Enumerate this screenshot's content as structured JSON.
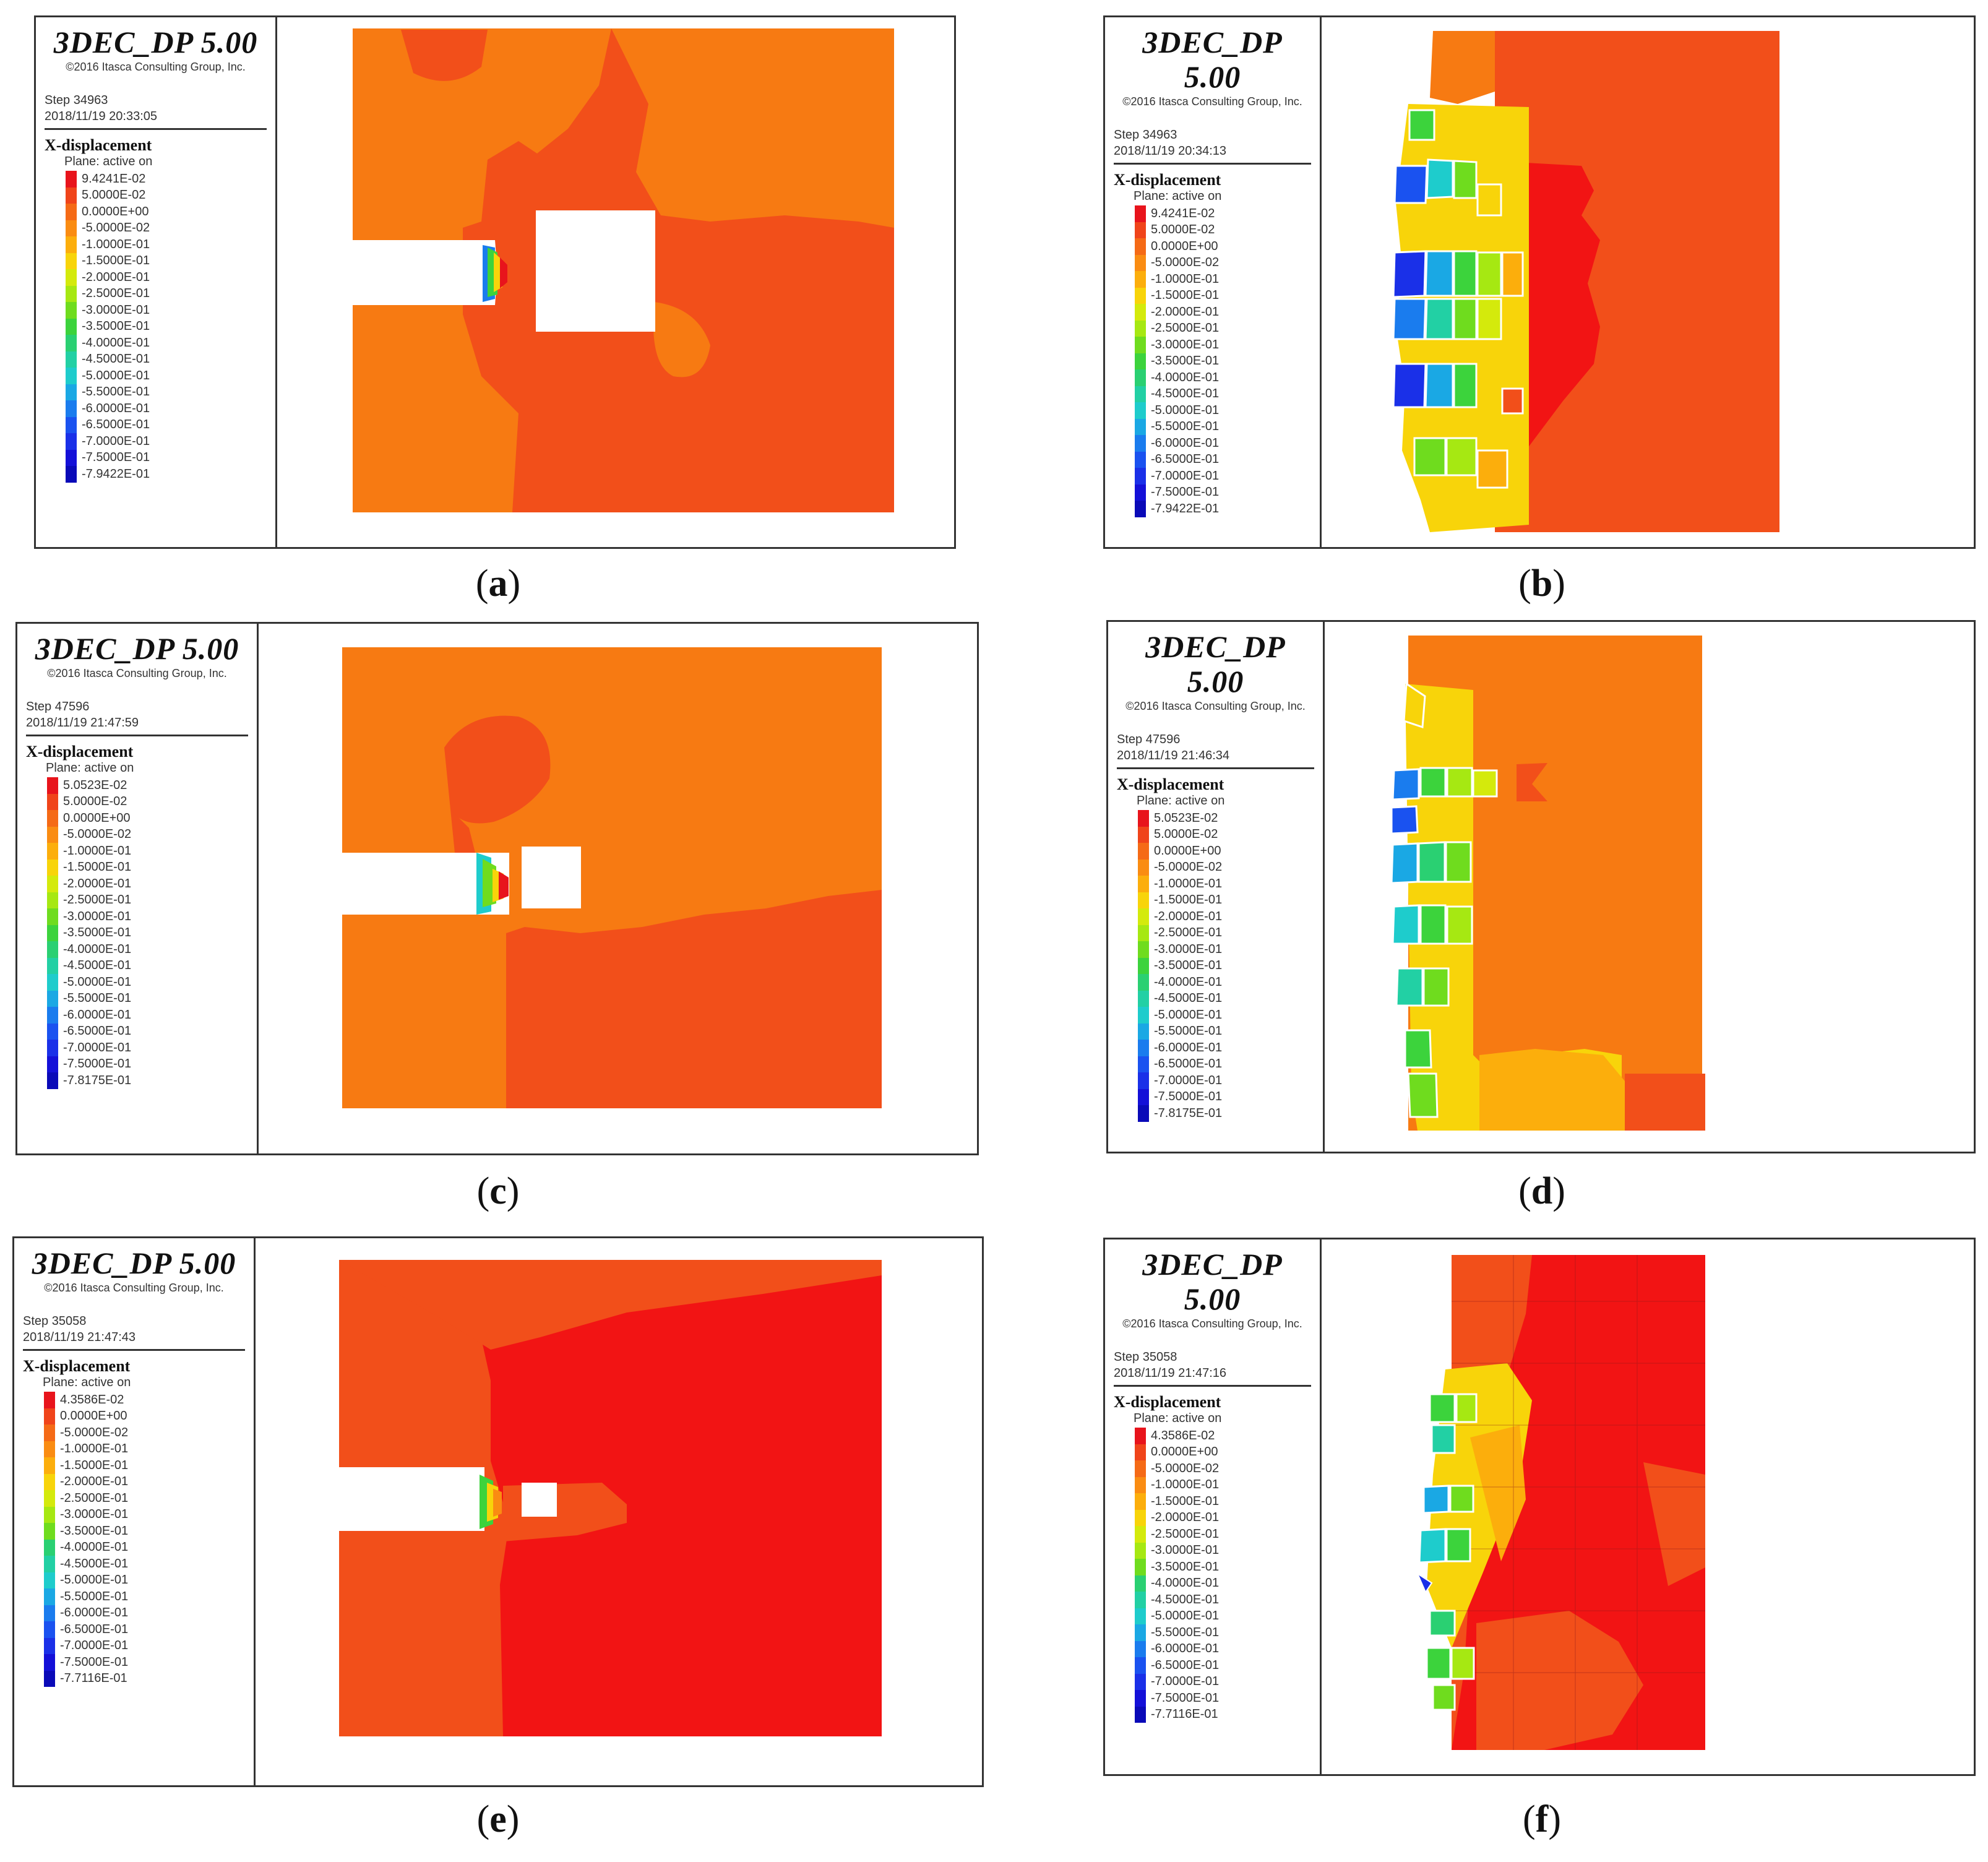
{
  "panels": [
    {
      "caption": "a",
      "app_title": "3DEC_DP 5.00",
      "copyright": "©2016 Itasca Consulting Group, Inc.",
      "step": "Step 34963",
      "timestamp": "2018/11/19 20:33:05",
      "quantity": "X-displacement",
      "plane": "Plane: active on",
      "scale": [
        "9.4241E-02",
        "5.0000E-02",
        "0.0000E+00",
        "-5.0000E-02",
        "-1.0000E-01",
        "-1.5000E-01",
        "-2.0000E-01",
        "-2.5000E-01",
        "-3.0000E-01",
        "-3.5000E-01",
        "-4.0000E-01",
        "-4.5000E-01",
        "-5.0000E-01",
        "-5.5000E-01",
        "-6.0000E-01",
        "-6.5000E-01",
        "-7.0000E-01",
        "-7.5000E-01",
        "-7.9422E-01"
      ]
    },
    {
      "caption": "b",
      "app_title": "3DEC_DP 5.00",
      "copyright": "©2016 Itasca Consulting Group, Inc.",
      "step": "Step 34963",
      "timestamp": "2018/11/19 20:34:13",
      "quantity": "X-displacement",
      "plane": "Plane: active on",
      "scale": [
        "9.4241E-02",
        "5.0000E-02",
        "0.0000E+00",
        "-5.0000E-02",
        "-1.0000E-01",
        "-1.5000E-01",
        "-2.0000E-01",
        "-2.5000E-01",
        "-3.0000E-01",
        "-3.5000E-01",
        "-4.0000E-01",
        "-4.5000E-01",
        "-5.0000E-01",
        "-5.5000E-01",
        "-6.0000E-01",
        "-6.5000E-01",
        "-7.0000E-01",
        "-7.5000E-01",
        "-7.9422E-01"
      ]
    },
    {
      "caption": "c",
      "app_title": "3DEC_DP 5.00",
      "copyright": "©2016 Itasca Consulting Group, Inc.",
      "step": "Step 47596",
      "timestamp": "2018/11/19 21:47:59",
      "quantity": "X-displacement",
      "plane": "Plane: active on",
      "scale": [
        "5.0523E-02",
        "5.0000E-02",
        "0.0000E+00",
        "-5.0000E-02",
        "-1.0000E-01",
        "-1.5000E-01",
        "-2.0000E-01",
        "-2.5000E-01",
        "-3.0000E-01",
        "-3.5000E-01",
        "-4.0000E-01",
        "-4.5000E-01",
        "-5.0000E-01",
        "-5.5000E-01",
        "-6.0000E-01",
        "-6.5000E-01",
        "-7.0000E-01",
        "-7.5000E-01",
        "-7.8175E-01"
      ]
    },
    {
      "caption": "d",
      "app_title": "3DEC_DP 5.00",
      "copyright": "©2016 Itasca Consulting Group, Inc.",
      "step": "Step 47596",
      "timestamp": "2018/11/19 21:46:34",
      "quantity": "X-displacement",
      "plane": "Plane: active on",
      "scale": [
        "5.0523E-02",
        "5.0000E-02",
        "0.0000E+00",
        "-5.0000E-02",
        "-1.0000E-01",
        "-1.5000E-01",
        "-2.0000E-01",
        "-2.5000E-01",
        "-3.0000E-01",
        "-3.5000E-01",
        "-4.0000E-01",
        "-4.5000E-01",
        "-5.0000E-01",
        "-5.5000E-01",
        "-6.0000E-01",
        "-6.5000E-01",
        "-7.0000E-01",
        "-7.5000E-01",
        "-7.8175E-01"
      ]
    },
    {
      "caption": "e",
      "app_title": "3DEC_DP 5.00",
      "copyright": "©2016 Itasca Consulting Group, Inc.",
      "step": "Step 35058",
      "timestamp": "2018/11/19 21:47:43",
      "quantity": "X-displacement",
      "plane": "Plane: active on",
      "scale": [
        "4.3586E-02",
        "0.0000E+00",
        "-5.0000E-02",
        "-1.0000E-01",
        "-1.5000E-01",
        "-2.0000E-01",
        "-2.5000E-01",
        "-3.0000E-01",
        "-3.5000E-01",
        "-4.0000E-01",
        "-4.5000E-01",
        "-5.0000E-01",
        "-5.5000E-01",
        "-6.0000E-01",
        "-6.5000E-01",
        "-7.0000E-01",
        "-7.5000E-01",
        "-7.7116E-01"
      ]
    },
    {
      "caption": "f",
      "app_title": "3DEC_DP 5.00",
      "copyright": "©2016 Itasca Consulting Group, Inc.",
      "step": "Step 35058",
      "timestamp": "2018/11/19 21:47:16",
      "quantity": "X-displacement",
      "plane": "Plane: active on",
      "scale": [
        "4.3586E-02",
        "0.0000E+00",
        "-5.0000E-02",
        "-1.0000E-01",
        "-1.5000E-01",
        "-2.0000E-01",
        "-2.5000E-01",
        "-3.0000E-01",
        "-3.5000E-01",
        "-4.0000E-01",
        "-4.5000E-01",
        "-5.0000E-01",
        "-5.5000E-01",
        "-6.0000E-01",
        "-6.5000E-01",
        "-7.0000E-01",
        "-7.5000E-01",
        "-7.7116E-01"
      ]
    }
  ],
  "colors": {
    "scale_ramp": [
      "#e8141c",
      "#f0441a",
      "#f56a16",
      "#fa8c12",
      "#fcae0c",
      "#f8d40a",
      "#d4ea0c",
      "#a6e812",
      "#6fdc1e",
      "#3cd33c",
      "#2ad072",
      "#22d0a4",
      "#1ecccc",
      "#1aa8e4",
      "#1a7cee",
      "#1a52f0",
      "#1a30e8",
      "#1410d8",
      "#0a0ab8"
    ],
    "orange_zone": "#f77a12",
    "red_orange_zone": "#f24f1a",
    "red_zone": "#f21414",
    "tunnel": "#ffffff"
  }
}
